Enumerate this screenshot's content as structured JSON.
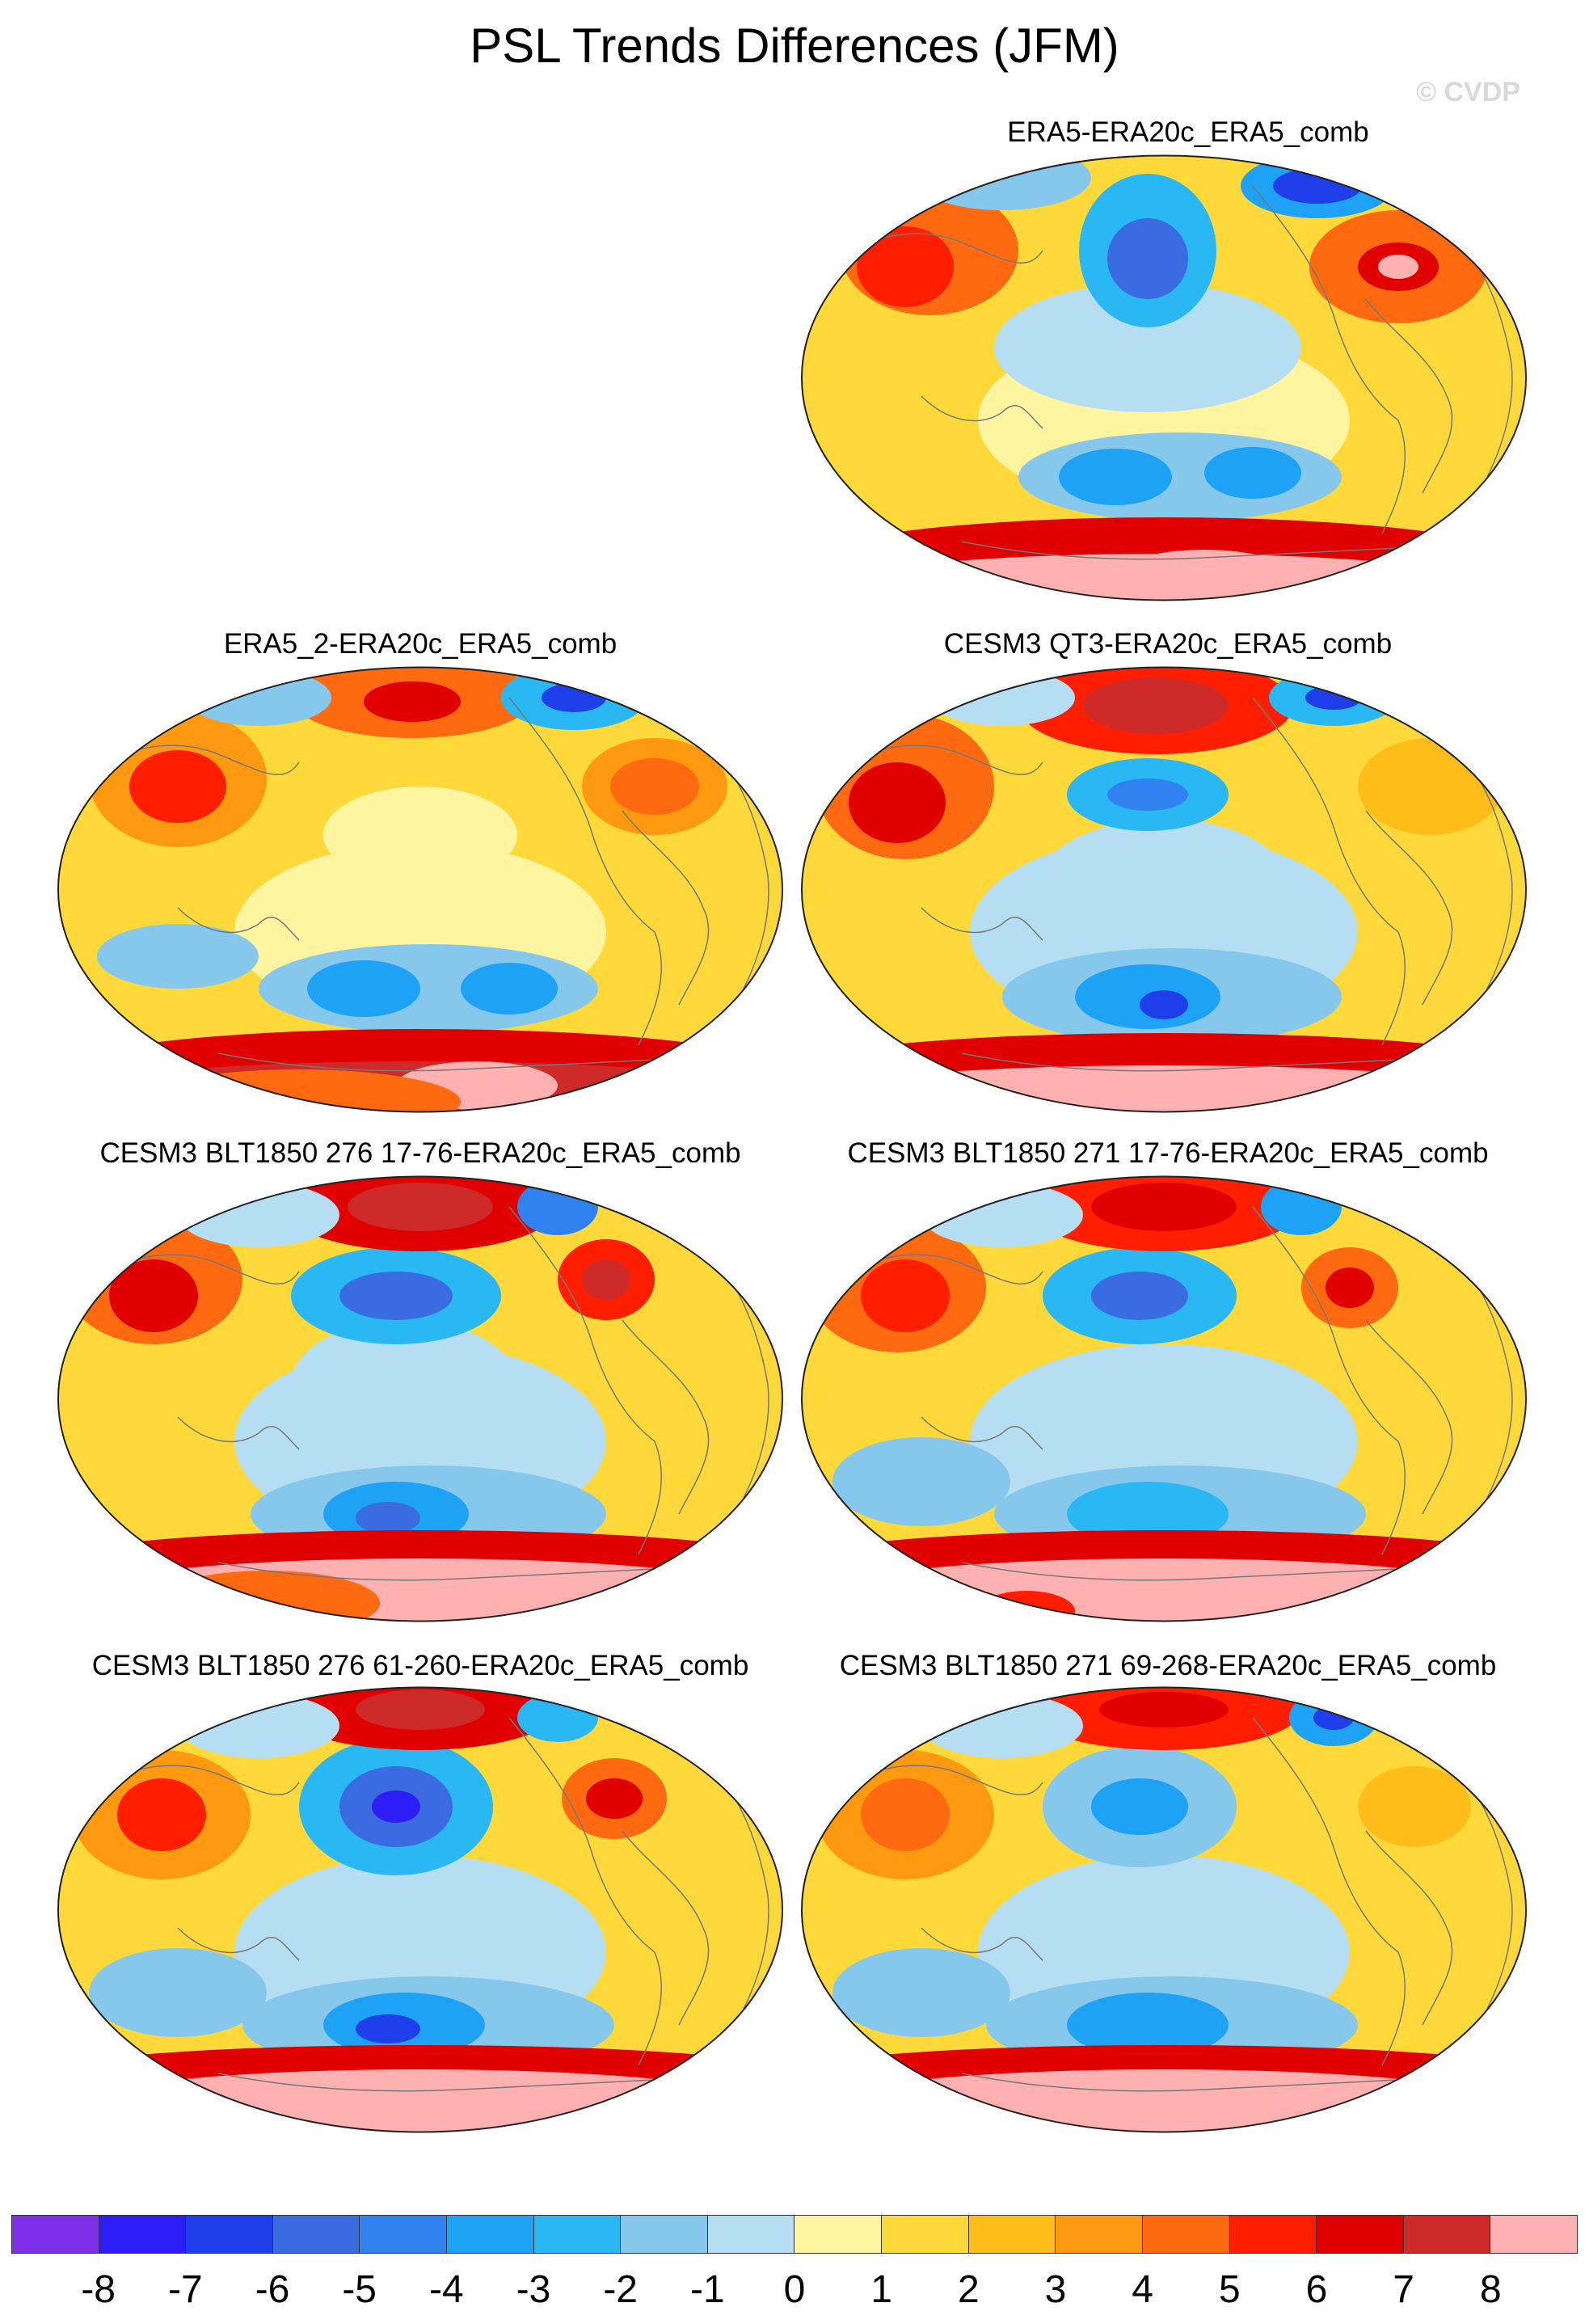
{
  "title": "PSL Trends Differences (JFM)",
  "watermark": "© CVDP",
  "colors": {
    "levels": [
      "#7f2fe8",
      "#2d1ef5",
      "#1d3ee8",
      "#3a6be0",
      "#2f82f0",
      "#1ea2f5",
      "#2ab8f5",
      "#86c8ec",
      "#b6def2",
      "#fff5a0",
      "#ffd93a",
      "#ffbd1a",
      "#ff9a10",
      "#ff6a10",
      "#ff1f00",
      "#e00000",
      "#cf2a2a",
      "#ffb0b0"
    ],
    "coastline": "#777777"
  },
  "colorbar": {
    "labels": [
      "-8",
      "-7",
      "-6",
      "-5",
      "-4",
      "-3",
      "-2",
      "-1",
      "0",
      "1",
      "2",
      "3",
      "4",
      "5",
      "6",
      "7",
      "8"
    ]
  },
  "panels": [
    {
      "title": "ERA5-ERA20c_ERA5_comb"
    },
    {
      "title": "ERA5_2-ERA20c_ERA5_comb"
    },
    {
      "title": "CESM3 QT3-ERA20c_ERA5_comb"
    },
    {
      "title": "CESM3 BLT1850 276 17-76-ERA20c_ERA5_comb"
    },
    {
      "title": "CESM3 BLT1850 271 17-76-ERA20c_ERA5_comb"
    },
    {
      "title": "CESM3 BLT1850 276 61-260-ERA20c_ERA5_comb"
    },
    {
      "title": "CESM3 BLT1850 271 69-268-ERA20c_ERA5_comb"
    }
  ]
}
